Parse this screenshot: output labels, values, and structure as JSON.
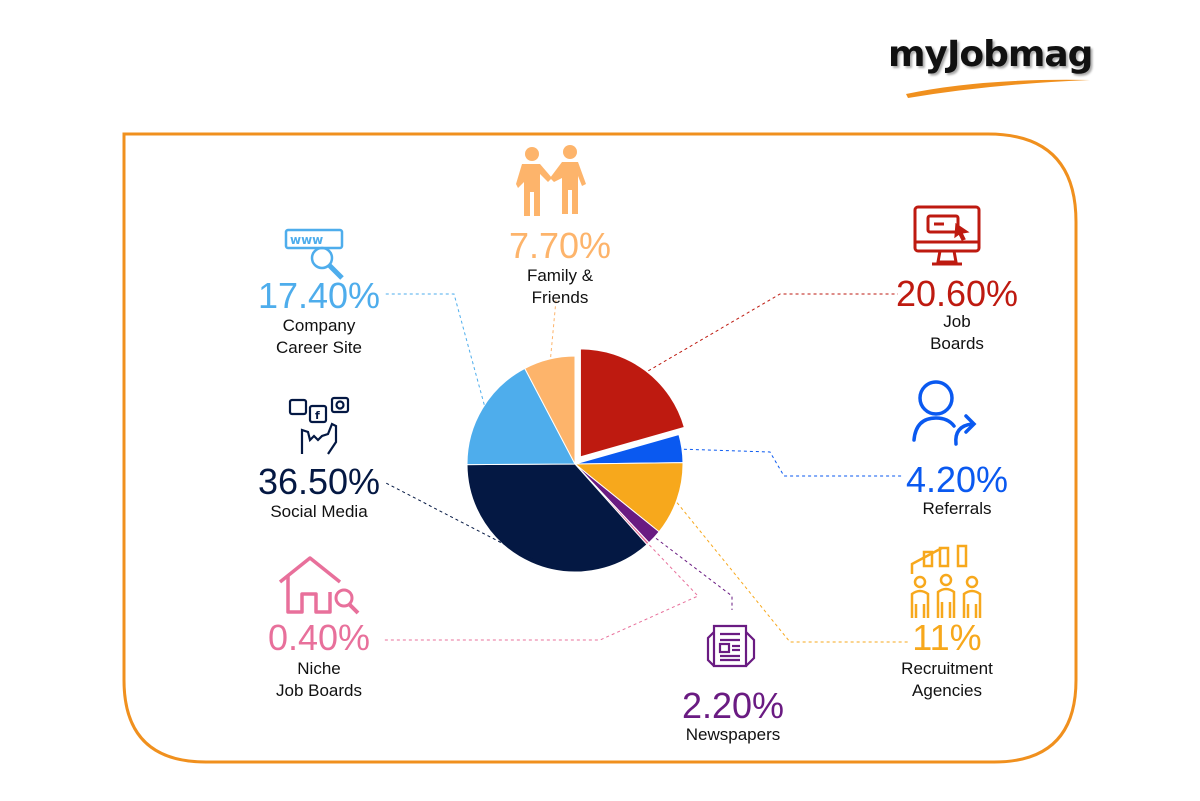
{
  "brand": {
    "logo_text": "myJobmag",
    "accent": "#F0901E"
  },
  "chart_data": {
    "type": "pie",
    "title": "",
    "slices": [
      {
        "label": "Job Boards",
        "value": 20.6,
        "display": "20.60%",
        "label_lines": [
          "Job",
          "Boards"
        ],
        "color": "#BE1A10",
        "icon": "computer-click-icon",
        "exploded": true
      },
      {
        "label": "Referrals",
        "value": 4.2,
        "display": "4.20%",
        "label_lines": [
          "Referrals"
        ],
        "color": "#0A59F0",
        "icon": "person-share-icon"
      },
      {
        "label": "Recruitment Agencies",
        "value": 11,
        "display": "11%",
        "label_lines": [
          "Recruitment",
          "Agencies"
        ],
        "color": "#F7A81C",
        "icon": "people-ranking-icon"
      },
      {
        "label": "Newspapers",
        "value": 2.2,
        "display": "2.20%",
        "label_lines": [
          "Newspapers"
        ],
        "color": "#6A1B82",
        "icon": "newspaper-icon"
      },
      {
        "label": "Niche Job Boards",
        "value": 0.4,
        "display": "0.40%",
        "label_lines": [
          "Niche",
          "Job Boards"
        ],
        "color": "#E8709B",
        "icon": "house-search-icon"
      },
      {
        "label": "Social Media",
        "value": 36.5,
        "display": "36.50%",
        "label_lines": [
          "Social Media"
        ],
        "color": "#041843",
        "icon": "social-media-hand-icon"
      },
      {
        "label": "Company Career Site",
        "value": 17.4,
        "display": "17.40%",
        "label_lines": [
          "Company",
          "Career Site"
        ],
        "color": "#4EADEC",
        "icon": "www-search-icon"
      },
      {
        "label": "Family & Friends",
        "value": 7.7,
        "display": "7.70%",
        "label_lines": [
          "Family &",
          "Friends"
        ],
        "color": "#FDB46B",
        "icon": "handshake-people-icon"
      }
    ]
  }
}
